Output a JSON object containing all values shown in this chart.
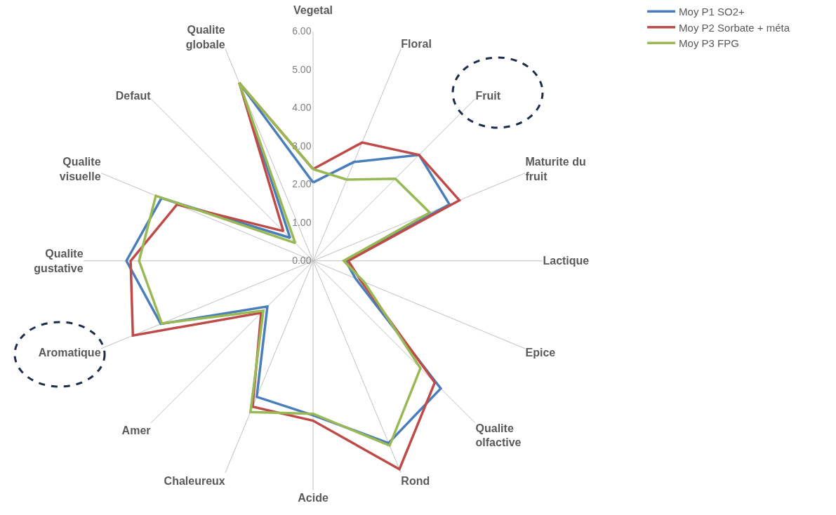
{
  "chart_data": {
    "type": "radar",
    "categories": [
      "Vegetal",
      "Floral",
      "Fruit",
      "Maturite du fruit",
      "Lactique",
      "Epice",
      "Qualite olfactive",
      "Rond",
      "Acide",
      "Chaleureux",
      "Amer",
      "Aromatique",
      "Qualite gustative",
      "Qualite visuelle",
      "Defaut",
      "Qualite globale"
    ],
    "series": [
      {
        "name": "Moy P1 SO2+",
        "color": "#4a7ebb",
        "values": [
          2.05,
          2.8,
          3.92,
          3.86,
          0.85,
          1.2,
          4.72,
          5.16,
          4.04,
          3.85,
          1.69,
          4.31,
          4.88,
          4.29,
          0.85,
          5.04
        ]
      },
      {
        "name": "Moy P2 Sorbate + méta",
        "color": "#be4b48",
        "values": [
          2.4,
          3.35,
          3.92,
          4.14,
          0.92,
          1.35,
          4.5,
          5.9,
          4.18,
          4.13,
          1.92,
          5.1,
          4.77,
          3.85,
          1.1,
          5.04
        ]
      },
      {
        "name": "Moy P3 FPG",
        "color": "#98b954",
        "values": [
          2.4,
          2.3,
          3.04,
          3.3,
          0.8,
          1.45,
          3.97,
          5.23,
          4.0,
          4.28,
          1.84,
          4.28,
          4.55,
          4.45,
          0.66,
          5.04
        ]
      }
    ],
    "ylim": [
      0,
      6
    ],
    "yticks": [
      {
        "value": 0,
        "label": "0.00"
      },
      {
        "value": 1,
        "label": "1.00"
      },
      {
        "value": 2,
        "label": "2.00"
      },
      {
        "value": 3,
        "label": "3.00"
      },
      {
        "value": 4,
        "label": "4.00"
      },
      {
        "value": 5,
        "label": "5.00"
      },
      {
        "value": 6,
        "label": "6.00"
      }
    ],
    "grid": "x",
    "legend": "top right",
    "marker": "none",
    "line_style": "solid"
  }
}
